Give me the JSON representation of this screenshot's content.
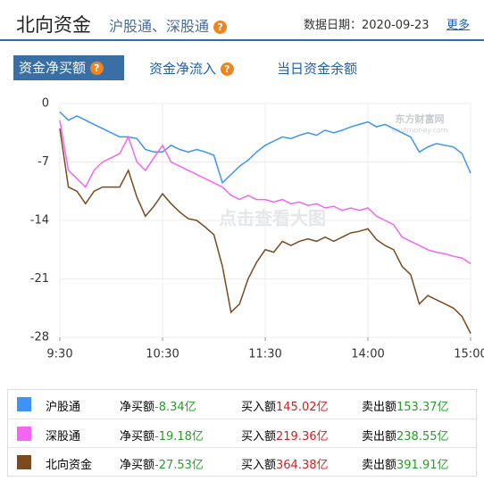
{
  "header": {
    "title": "北向资金",
    "subtitle": "沪股通、深股通",
    "help": "?",
    "date": "数据日期：2020-09-23",
    "more": "更多"
  },
  "tabs": [
    {
      "label": "资金净买额",
      "help": "?"
    },
    {
      "label": "资金净流入",
      "help": "?"
    },
    {
      "label": "当日资金余额"
    }
  ],
  "chart_data": {
    "type": "line",
    "watermarks": [
      "东方财富网",
      "eastmoney.com",
      "点击查看大图"
    ],
    "x": [
      "9:30",
      null,
      null,
      null,
      null,
      null,
      null,
      null,
      null,
      null,
      null,
      null,
      "10:30",
      null,
      null,
      null,
      null,
      null,
      null,
      null,
      null,
      null,
      null,
      null,
      "11:30",
      null,
      null,
      null,
      null,
      null,
      null,
      null,
      null,
      null,
      null,
      null,
      "14:00",
      null,
      null,
      null,
      null,
      null,
      null,
      null,
      null,
      null,
      null,
      null,
      "15:00"
    ],
    "ylim": [
      -28,
      0
    ],
    "yticks": [
      0,
      -7,
      -14,
      -21,
      -28
    ],
    "grid": true,
    "series": [
      {
        "name": "沪股通",
        "color": "#3d94f6",
        "values": [
          -1,
          -2,
          -1.5,
          -2,
          -2.5,
          -3,
          -3.5,
          -4,
          -4,
          -4.2,
          -5.5,
          -5.8,
          -5.8,
          -5,
          -5.5,
          -5.8,
          -5.5,
          -5.8,
          -6.2,
          -9.5,
          -8.5,
          -7.5,
          -6.8,
          -5.8,
          -5,
          -4.5,
          -4,
          -4.2,
          -3.8,
          -3.5,
          -3.8,
          -3.2,
          -3.5,
          -3.2,
          -2.8,
          -2.5,
          -2.2,
          -2.8,
          -2.5,
          -3,
          -3.5,
          -4,
          -5.8,
          -5.2,
          -4.8,
          -5,
          -5.2,
          -6,
          -8.34
        ]
      },
      {
        "name": "深股通",
        "color": "#f266f2",
        "values": [
          -2,
          -8,
          -9,
          -10,
          -8,
          -7,
          -6.5,
          -6,
          -4,
          -7,
          -8,
          -6.5,
          -5,
          -7,
          -7.5,
          -8,
          -8.5,
          -9,
          -9.5,
          -10,
          -11,
          -11.5,
          -11,
          -11.5,
          -11.5,
          -11.8,
          -11.5,
          -12,
          -11.8,
          -12.2,
          -12,
          -12.5,
          -12.3,
          -12.8,
          -12.5,
          -12.8,
          -12.5,
          -13.5,
          -14,
          -14.5,
          -16,
          -16.5,
          -17,
          -17.5,
          -17.8,
          -18,
          -18.3,
          -18.5,
          -19.18
        ]
      },
      {
        "name": "北向资金",
        "color": "#7b4a1e",
        "values": [
          -3,
          -10,
          -10.5,
          -12,
          -10.5,
          -10,
          -10,
          -10,
          -8,
          -11.2,
          -13.5,
          -12.3,
          -10.8,
          -12,
          -13,
          -13.8,
          -14,
          -14.8,
          -15.7,
          -19.5,
          -25,
          -24,
          -21,
          -19,
          -17.5,
          -17.8,
          -16.5,
          -17,
          -16.5,
          -16.2,
          -16.5,
          -16,
          -16.5,
          -16,
          -15.5,
          -15.3,
          -15,
          -16.3,
          -17,
          -17.5,
          -19.5,
          -20.5,
          -24,
          -23,
          -23.5,
          -24,
          -24.5,
          -25.5,
          -27.53
        ]
      }
    ]
  },
  "table": {
    "rows": [
      {
        "net_label": "净买额",
        "net": "-8.34亿",
        "buy_label": "买入额",
        "buy": "145.02亿",
        "sell_label": "卖出额",
        "sell": "153.37亿"
      },
      {
        "net_label": "净买额",
        "net": "-19.18亿",
        "buy_label": "买入额",
        "buy": "219.36亿",
        "sell_label": "卖出额",
        "sell": "238.55亿"
      },
      {
        "net_label": "净买额",
        "net": "-27.53亿",
        "buy_label": "买入额",
        "buy": "364.38亿",
        "sell_label": "卖出额",
        "sell": "391.91亿"
      }
    ]
  }
}
